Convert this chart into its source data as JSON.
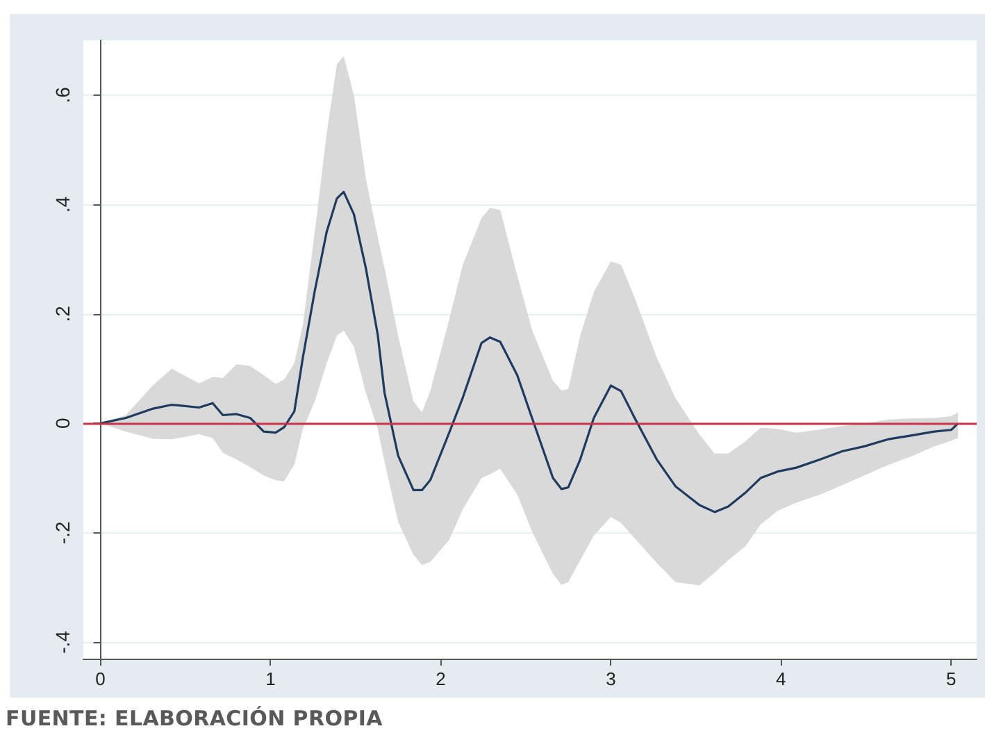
{
  "chart_data": {
    "type": "line",
    "annotations": [
      "FUENTE: ELABORACIÓN PROPIA"
    ],
    "x": [
      0,
      0.15,
      0.31,
      0.42,
      0.58,
      0.66,
      0.72,
      0.8,
      0.88,
      0.96,
      1.03,
      1.08,
      1.14,
      1.19,
      1.26,
      1.33,
      1.39,
      1.43,
      1.49,
      1.56,
      1.63,
      1.67,
      1.75,
      1.84,
      1.89,
      1.94,
      2.05,
      2.13,
      2.24,
      2.29,
      2.35,
      2.45,
      2.54,
      2.66,
      2.71,
      2.75,
      2.82,
      2.9,
      3.0,
      3.06,
      3.14,
      3.27,
      3.38,
      3.52,
      3.61,
      3.69,
      3.79,
      3.88,
      3.98,
      4.09,
      4.23,
      4.36,
      4.49,
      4.63,
      4.77,
      4.9,
      5.0,
      5.04
    ],
    "series": [
      {
        "color": "#1f3a5f",
        "values": [
          0,
          0.01,
          0.027,
          0.034,
          0.029,
          0.037,
          0.015,
          0.017,
          0.01,
          -0.015,
          -0.017,
          -0.007,
          0.022,
          0.12,
          0.242,
          0.35,
          0.411,
          0.423,
          0.382,
          0.284,
          0.162,
          0.056,
          -0.059,
          -0.122,
          -0.122,
          -0.103,
          -0.017,
          0.047,
          0.147,
          0.157,
          0.149,
          0.088,
          0.007,
          -0.1,
          -0.12,
          -0.117,
          -0.066,
          0.01,
          0.069,
          0.059,
          0.01,
          -0.066,
          -0.115,
          -0.149,
          -0.162,
          -0.152,
          -0.127,
          -0.1,
          -0.088,
          -0.081,
          -0.066,
          -0.051,
          -0.042,
          -0.029,
          -0.022,
          -0.015,
          -0.012,
          0
        ],
        "upper": [
          0,
          0.015,
          0.07,
          0.1,
          0.073,
          0.085,
          0.083,
          0.108,
          0.105,
          0.088,
          0.072,
          0.08,
          0.11,
          0.18,
          0.35,
          0.53,
          0.656,
          0.671,
          0.6,
          0.448,
          0.34,
          0.284,
          0.16,
          0.04,
          0.02,
          0.06,
          0.19,
          0.29,
          0.375,
          0.394,
          0.39,
          0.27,
          0.168,
          0.078,
          0.06,
          0.063,
          0.16,
          0.24,
          0.296,
          0.29,
          0.23,
          0.12,
          0.046,
          -0.02,
          -0.055,
          -0.055,
          -0.033,
          -0.008,
          -0.01,
          -0.017,
          -0.011,
          -0.005,
          0.0,
          0.007,
          0.009,
          0.01,
          0.013,
          0.02
        ],
        "lower": [
          0,
          -0.015,
          -0.028,
          -0.029,
          -0.02,
          -0.027,
          -0.054,
          -0.066,
          -0.08,
          -0.095,
          -0.104,
          -0.106,
          -0.075,
          -0.01,
          0.04,
          0.11,
          0.16,
          0.169,
          0.14,
          0.056,
          -0.01,
          -0.07,
          -0.18,
          -0.24,
          -0.259,
          -0.253,
          -0.213,
          -0.157,
          -0.1,
          -0.093,
          -0.083,
          -0.13,
          -0.2,
          -0.275,
          -0.295,
          -0.29,
          -0.25,
          -0.205,
          -0.171,
          -0.182,
          -0.21,
          -0.255,
          -0.29,
          -0.296,
          -0.273,
          -0.25,
          -0.225,
          -0.185,
          -0.16,
          -0.145,
          -0.13,
          -0.113,
          -0.095,
          -0.076,
          -0.06,
          -0.042,
          -0.032,
          -0.027
        ]
      }
    ],
    "xlim": [
      -0.1,
      5.15
    ],
    "xticks": [
      0,
      1,
      2,
      3,
      4,
      5
    ],
    "ylim": [
      -0.43,
      0.7
    ],
    "yticks": [
      {
        "value": -0.4,
        "label": "-.4"
      },
      {
        "value": -0.2,
        "label": "-.2"
      },
      {
        "value": 0,
        "label": "0"
      },
      {
        "value": 0.2,
        "label": ".2"
      },
      {
        "value": 0.4,
        "label": ".4"
      },
      {
        "value": 0.6,
        "label": ".6"
      }
    ],
    "ref_lines": [
      {
        "axis": "y",
        "value": 0,
        "color": "#c8334a"
      }
    ],
    "grid": "y",
    "marker": "none",
    "line_style": "solid"
  }
}
